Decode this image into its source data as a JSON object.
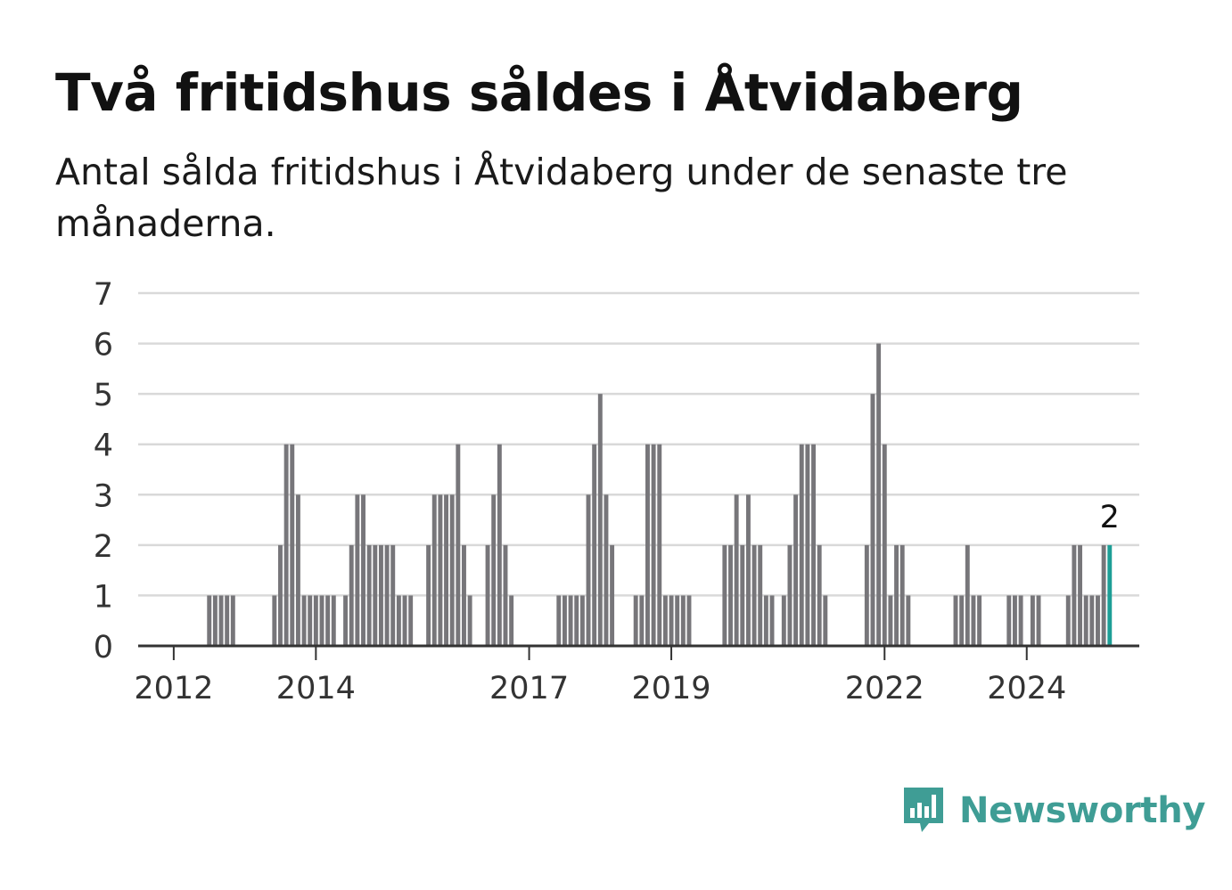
{
  "header": {
    "title": "Två fritidshus såldes i Åtvidaberg",
    "subtitle": "Antal sålda fritidshus i Åtvidaberg under de senaste tre månaderna."
  },
  "brand": {
    "name": "Newsworthy",
    "color": "#3f9d95",
    "icon": "bar-chart-speech-bubble-icon"
  },
  "colors": {
    "bar": "#77767a",
    "highlight": "#1d9e96",
    "grid": "#d9d9d9",
    "axis": "#333333",
    "tick_text": "#333333"
  },
  "chart_data": {
    "type": "bar",
    "title": "Två fritidshus såldes i Åtvidaberg",
    "subtitle": "Antal sålda fritidshus i Åtvidaberg under de senaste tre månaderna.",
    "xlabel": "",
    "ylabel": "",
    "ylim": [
      0,
      7
    ],
    "yticks": [
      0,
      1,
      2,
      3,
      4,
      5,
      6,
      7
    ],
    "grid": true,
    "x_tick_labels": [
      "2012",
      "2014",
      "2017",
      "2019",
      "2022",
      "2024"
    ],
    "x_tick_dates": [
      "2012-01",
      "2014-01",
      "2017-01",
      "2019-01",
      "2022-01",
      "2024-01"
    ],
    "x_range": [
      "2011-07",
      "2025-08"
    ],
    "period": "rolling three months, monthly",
    "highlight_label": "2",
    "series": [
      {
        "start": "2011-07",
        "values": [
          0,
          0,
          0,
          0,
          0,
          0,
          0,
          0,
          0,
          0,
          0,
          0,
          1,
          1,
          1,
          1,
          1,
          0,
          0,
          0,
          0,
          0,
          0,
          1,
          2,
          4,
          4,
          3,
          1,
          1,
          1,
          1,
          1,
          1,
          0,
          1,
          2,
          3,
          3,
          2,
          2,
          2,
          2,
          2,
          1,
          1,
          1,
          0,
          0,
          2,
          3,
          3,
          3,
          3,
          4,
          2,
          1,
          0,
          0,
          2,
          3,
          4,
          2,
          1,
          0,
          0,
          0,
          0,
          0,
          0,
          0,
          1,
          1,
          1,
          1,
          1,
          3,
          4,
          5,
          3,
          2,
          0,
          0,
          0,
          1,
          1,
          4,
          4,
          4,
          1,
          1,
          1,
          1,
          1,
          0,
          0,
          0,
          0,
          0,
          2,
          2,
          3,
          2,
          3,
          2,
          2,
          1,
          1,
          0,
          1,
          2,
          3,
          4,
          4,
          4,
          2,
          1,
          0,
          0,
          0,
          0,
          0,
          0,
          2,
          5,
          6,
          4,
          1,
          2,
          2,
          1,
          0,
          0,
          0,
          0,
          0,
          0,
          0,
          1,
          1,
          2,
          1,
          1,
          0,
          0,
          0,
          0,
          1,
          1,
          1,
          0,
          1,
          1,
          0,
          0,
          0,
          0,
          1,
          2,
          2,
          1,
          1,
          1,
          2,
          2
        ]
      }
    ]
  }
}
